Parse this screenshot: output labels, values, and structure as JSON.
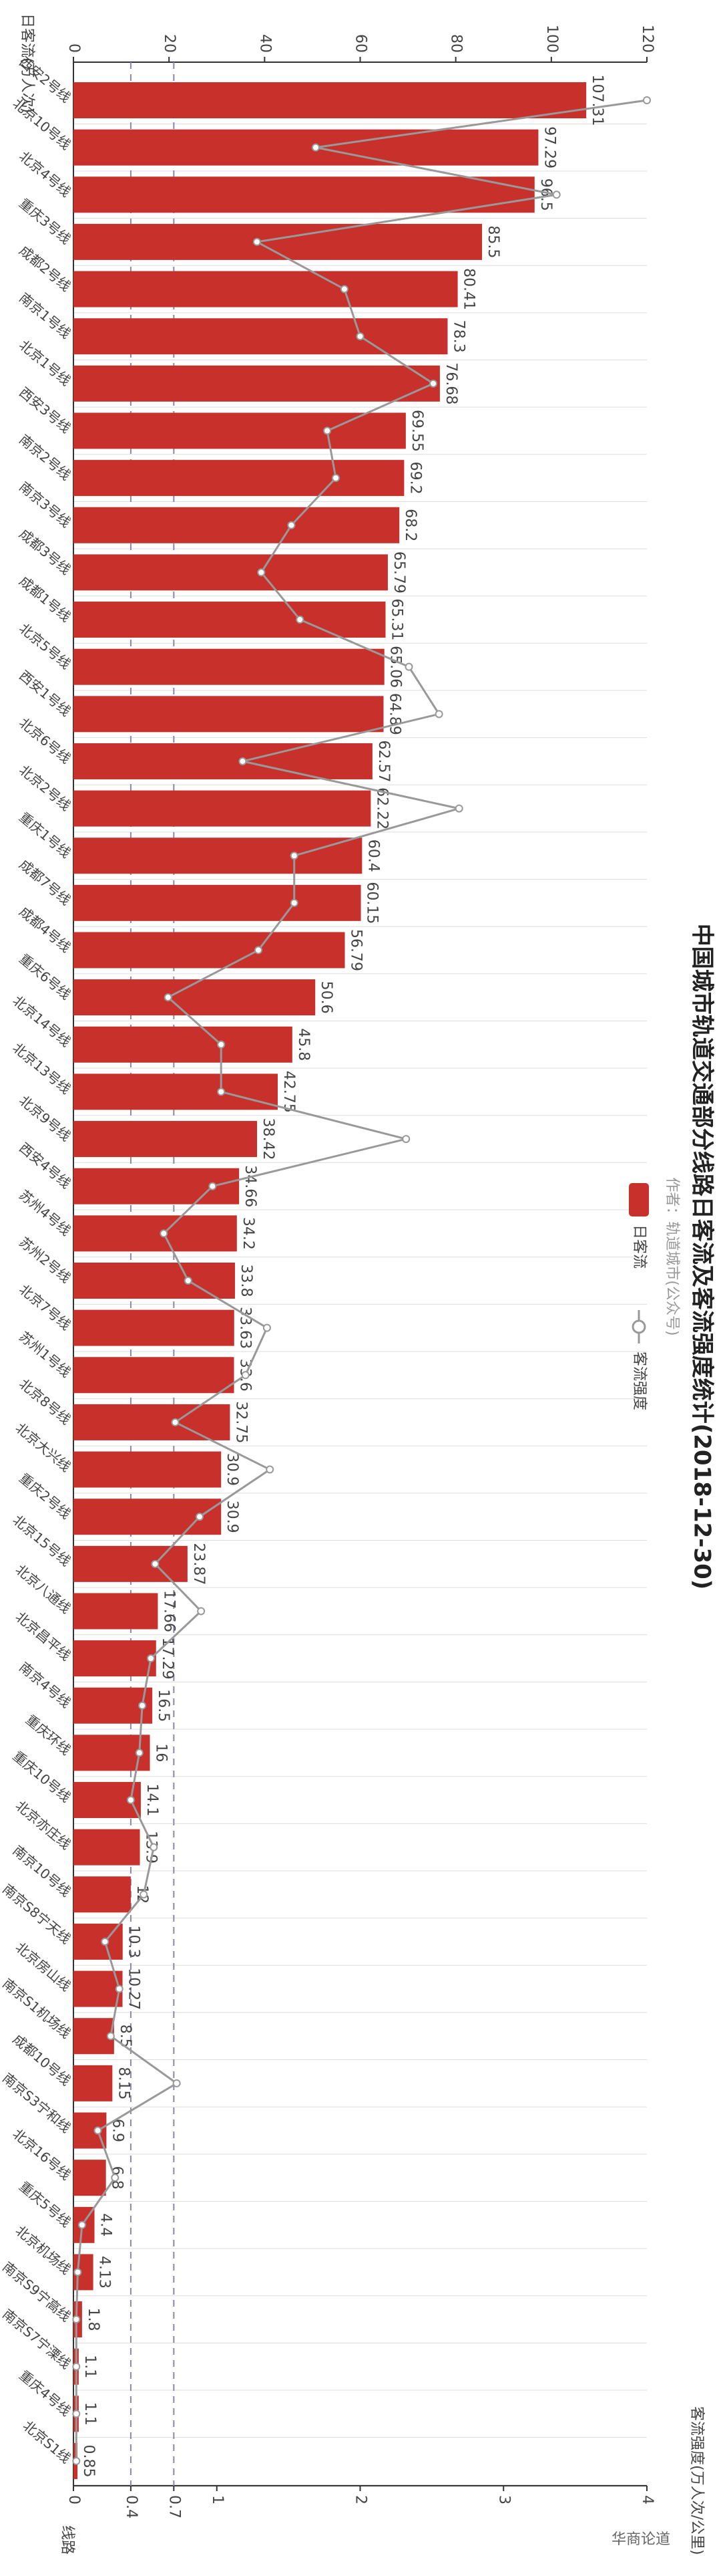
{
  "chart_data": {
    "type": "bar",
    "orientation": "horizontal",
    "title": "中国城市轨道交通部分线路日客流及客流强度统计(2018-12-30)",
    "subtitle": "作者：轨道城市(公众号)",
    "x_label": "日客流(万人次)",
    "x2_label": "客流强度(万人次/公里)",
    "y_label": "线路",
    "watermark": "华商论道",
    "categories": [
      "西安2号线",
      "北京10号线",
      "北京4号线",
      "重庆3号线",
      "成都2号线",
      "南京1号线",
      "北京1号线",
      "西安3号线",
      "南京2号线",
      "南京3号线",
      "成都3号线",
      "成都1号线",
      "北京5号线",
      "西安1号线",
      "北京6号线",
      "北京2号线",
      "重庆1号线",
      "成都7号线",
      "成都4号线",
      "重庆6号线",
      "北京14号线",
      "北京13号线",
      "北京9号线",
      "西安4号线",
      "苏州4号线",
      "苏州2号线",
      "北京7号线",
      "苏州1号线",
      "北京8号线",
      "北京大兴线",
      "重庆2号线",
      "北京15号线",
      "北京八通线",
      "北京昌平线",
      "南京4号线",
      "重庆环线",
      "重庆10号线",
      "北京亦庄线",
      "南京10号线",
      "南京S8宁天线",
      "北京房山线",
      "南京S1机场线",
      "成都10号线",
      "南京S3宁和线",
      "北京16号线",
      "重庆5号线",
      "北京机场线",
      "南京S9宁高线",
      "南京S7宁溧线",
      "重庆4号线",
      "北京S1线"
    ],
    "series": [
      {
        "name": "日客流",
        "color": "#c8302c",
        "axis": "x",
        "values": [
          107.31,
          97.29,
          96.5,
          85.5,
          80.41,
          78.3,
          76.68,
          69.55,
          69.2,
          68.2,
          65.79,
          65.31,
          65.06,
          64.89,
          62.57,
          62.22,
          60.4,
          60.15,
          56.79,
          50.6,
          45.8,
          42.75,
          38.42,
          34.66,
          34.2,
          33.8,
          33.63,
          33.6,
          32.75,
          30.9,
          30.9,
          23.87,
          17.66,
          17.29,
          16.5,
          16,
          14.1,
          13.9,
          12,
          10.3,
          10.27,
          8.5,
          8.15,
          6.9,
          6.8,
          4.4,
          4.13,
          1.8,
          1.1,
          1.1,
          0.85
        ]
      },
      {
        "name": "客流强度",
        "color": "#999999",
        "axis": "x2",
        "values": [
          4.0,
          1.69,
          3.37,
          1.28,
          1.89,
          2.0,
          2.51,
          1.77,
          1.83,
          1.52,
          1.31,
          1.58,
          2.34,
          2.55,
          1.18,
          2.69,
          1.54,
          1.54,
          1.29,
          0.66,
          1.03,
          1.03,
          2.32,
          0.97,
          0.63,
          0.8,
          1.35,
          1.2,
          0.71,
          1.37,
          0.88,
          0.57,
          0.89,
          0.54,
          0.48,
          0.46,
          0.4,
          0.56,
          0.49,
          0.22,
          0.32,
          0.26,
          0.72,
          0.17,
          0.29,
          0.06,
          0.03,
          0.02,
          0.02,
          0.02,
          0.02
        ]
      }
    ],
    "xlim": [
      0,
      120
    ],
    "xticks": [
      0,
      20,
      40,
      60,
      80,
      100,
      120
    ],
    "x2lim": [
      0,
      4
    ],
    "x2ticks": [
      0,
      0.4,
      0.7,
      1,
      2,
      3,
      4
    ],
    "mark_lines": [
      0.4,
      0.7
    ]
  }
}
